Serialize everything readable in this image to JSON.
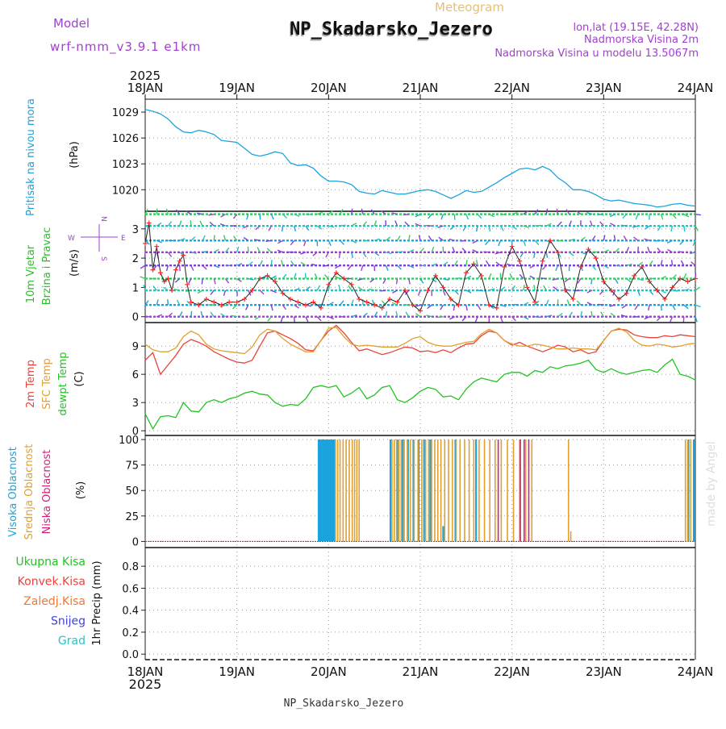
{
  "header": {
    "model_label": "Model",
    "model_name": "wrf-nmm_v3.9.1 e1km",
    "title": "NP_Skadarsko_Jezero",
    "subtitle": "Meteogram",
    "lonlat": "lon,lat (19.15E, 42.28N)",
    "elev": "Nadmorska Visina 2m",
    "model_elev": "Nadmorska Visina u modelu 13.5067m",
    "footer": "NP_Skadarsko_Jezero",
    "watermark": "made by Angel"
  },
  "time_axis": {
    "year": "2025",
    "labels": [
      "18JAN",
      "19JAN",
      "20JAN",
      "21JAN",
      "22JAN",
      "23JAN",
      "24JAN"
    ]
  },
  "colors": {
    "pressure": "#1ba3dd",
    "temp2m": "#e8433a",
    "sfc": "#e0a030",
    "dewpt": "#22c322",
    "high_cloud": "#1ba3dd",
    "mid_cloud": "#e0a030",
    "low_cloud": "#d0207a",
    "wind_label": "#22c322",
    "purple": "#a040d0",
    "wind_speed": "#ff2a2a"
  },
  "panels": {
    "pressure": {
      "ylabel_a": "Pritisak na nivou mora",
      "ylabel_unit": "(hPa)"
    },
    "wind": {
      "ylabel_a": "10m Vjetar",
      "ylabel_b": "Brzina i Pravac",
      "ylabel_unit": "(m/s)",
      "compass_n": "N",
      "compass_s": "S",
      "compass_w": "W",
      "compass_e": "E"
    },
    "temp": {
      "ylabel_a": "2m Temp",
      "ylabel_b": "SFC Temp",
      "ylabel_c": "dewpt Temp",
      "ylabel_unit": "(C)"
    },
    "cloud": {
      "ylabel_a": "Visoka Oblacnost",
      "ylabel_b": "Srednja Oblacnost",
      "ylabel_c": "Niska Oblacnost",
      "ylabel_unit": "(%)"
    },
    "precip": {
      "legend": [
        "Ukupna Kisa",
        "Konvek.Kisa",
        "Zaledj.Kisa",
        "Snijeg",
        "Grad"
      ],
      "legend_colors": [
        "#22c322",
        "#e8433a",
        "#f07830",
        "#4040e0",
        "#30c0c0"
      ],
      "ylabel": "1hr Precip (mm)"
    }
  },
  "chart_data": [
    {
      "type": "line",
      "title": "",
      "x_range": [
        0,
        144
      ],
      "ylabel": "Pritisak na nivou mora (hPa)",
      "ylim": [
        1017.5,
        1030.5
      ],
      "yticks": [
        1020,
        1023,
        1026,
        1029
      ],
      "grid": true,
      "series": [
        {
          "values_x": [
            0,
            2,
            4,
            6,
            8,
            10,
            12,
            14,
            16,
            18,
            20,
            22,
            24,
            26,
            28,
            30,
            32,
            34,
            36,
            38,
            40,
            42,
            44,
            46,
            48,
            50,
            52,
            54,
            56,
            58,
            60,
            62,
            64,
            66,
            68,
            70,
            72,
            74,
            76,
            78,
            80,
            82,
            84,
            86,
            88,
            90,
            92,
            94,
            96,
            98,
            100,
            102,
            104,
            106,
            108,
            110,
            112,
            114,
            116,
            118,
            120,
            122,
            124,
            126,
            128,
            130,
            132,
            134,
            136,
            138,
            140,
            142,
            144
          ],
          "values": [
            1029.3,
            1029.1,
            1028.8,
            1028.2,
            1027.3,
            1026.7,
            1026.6,
            1026.9,
            1026.7,
            1026.4,
            1025.7,
            1025.6,
            1025.5,
            1024.8,
            1024.1,
            1023.9,
            1024.1,
            1024.4,
            1024.2,
            1023.1,
            1022.8,
            1022.9,
            1022.5,
            1021.6,
            1021.0,
            1021.0,
            1020.9,
            1020.6,
            1019.8,
            1019.6,
            1019.5,
            1019.9,
            1019.7,
            1019.5,
            1019.5,
            1019.7,
            1019.9,
            1020.0,
            1019.8,
            1019.4,
            1019.0,
            1019.4,
            1019.9,
            1019.7,
            1019.8,
            1020.3,
            1020.8,
            1021.4,
            1021.9,
            1022.4,
            1022.5,
            1022.3,
            1022.7,
            1022.3,
            1021.4,
            1020.8,
            1020.0,
            1020.0,
            1019.8,
            1019.4,
            1018.9,
            1018.7,
            1018.8,
            1018.6,
            1018.4,
            1018.3,
            1018.2,
            1018.0,
            1018.1,
            1018.3,
            1018.4,
            1018.2,
            1018.1
          ]
        }
      ]
    },
    {
      "type": "line",
      "title": "",
      "x_range": [
        0,
        144
      ],
      "ylabel": "10m Vjetar Brzina i Pravac (m/s)",
      "ylim": [
        -0.2,
        3.6
      ],
      "yticks": [
        0,
        1,
        2,
        3
      ],
      "grid": true,
      "series": [
        {
          "name": "speed",
          "values_x": [
            0,
            1,
            2,
            3,
            4,
            5,
            6,
            7,
            8,
            9,
            10,
            11,
            12,
            14,
            16,
            18,
            20,
            22,
            24,
            26,
            28,
            30,
            32,
            34,
            36,
            38,
            40,
            42,
            44,
            46,
            48,
            50,
            52,
            54,
            56,
            58,
            60,
            62,
            64,
            66,
            68,
            70,
            72,
            74,
            76,
            78,
            80,
            82,
            84,
            86,
            88,
            90,
            92,
            94,
            96,
            98,
            100,
            102,
            104,
            106,
            108,
            110,
            112,
            114,
            116,
            118,
            120,
            122,
            124,
            126,
            128,
            130,
            132,
            134,
            136,
            138,
            140,
            142,
            144
          ],
          "values": [
            2.5,
            3.2,
            1.6,
            2.4,
            1.5,
            1.2,
            1.3,
            0.9,
            1.6,
            1.9,
            2.1,
            1.1,
            0.5,
            0.4,
            0.6,
            0.5,
            0.4,
            0.5,
            0.5,
            0.6,
            0.9,
            1.3,
            1.4,
            1.2,
            0.8,
            0.6,
            0.5,
            0.4,
            0.5,
            0.3,
            1.1,
            1.5,
            1.3,
            1.1,
            0.6,
            0.5,
            0.4,
            0.3,
            0.6,
            0.5,
            0.9,
            0.4,
            0.2,
            0.9,
            1.4,
            1.0,
            0.6,
            0.4,
            1.5,
            1.8,
            1.4,
            0.4,
            0.3,
            1.7,
            2.4,
            1.9,
            1.0,
            0.5,
            1.9,
            2.6,
            2.2,
            0.9,
            0.6,
            1.7,
            2.3,
            2.0,
            1.2,
            0.9,
            0.6,
            0.8,
            1.4,
            1.7,
            1.2,
            0.9,
            0.6,
            1.0,
            1.3,
            1.2,
            1.3
          ]
        },
        {
          "name": "direction_rows",
          "values": [
            0.0,
            0.4,
            0.9,
            1.3,
            1.75,
            2.2,
            2.6,
            3.1,
            3.5
          ]
        }
      ]
    },
    {
      "type": "line",
      "title": "",
      "x_range": [
        0,
        144
      ],
      "ylabel": "(C)",
      "ylim": [
        -0.5,
        11.5
      ],
      "yticks": [
        0,
        3,
        6,
        9
      ],
      "grid": true,
      "series": [
        {
          "name": "2m Temp",
          "values_x": [
            0,
            2,
            4,
            6,
            8,
            10,
            12,
            14,
            16,
            18,
            20,
            22,
            24,
            26,
            28,
            30,
            32,
            34,
            36,
            38,
            40,
            42,
            44,
            46,
            48,
            50,
            52,
            54,
            56,
            58,
            60,
            62,
            64,
            66,
            68,
            70,
            72,
            74,
            76,
            78,
            80,
            82,
            84,
            86,
            88,
            90,
            92,
            94,
            96,
            98,
            100,
            102,
            104,
            106,
            108,
            110,
            112,
            114,
            116,
            118,
            120,
            122,
            124,
            126,
            128,
            130,
            132,
            134,
            136,
            138,
            140,
            142,
            144
          ],
          "values": [
            7.5,
            8.3,
            6.0,
            7.0,
            8.0,
            9.2,
            9.7,
            9.4,
            9.0,
            8.4,
            8.0,
            7.6,
            7.3,
            7.2,
            7.5,
            9.0,
            10.4,
            10.6,
            10.2,
            9.8,
            9.3,
            8.6,
            8.5,
            9.6,
            10.6,
            11.2,
            10.4,
            9.4,
            8.5,
            8.7,
            8.4,
            8.1,
            8.3,
            8.6,
            8.9,
            8.8,
            8.4,
            8.5,
            8.3,
            8.6,
            8.3,
            8.8,
            9.2,
            9.3,
            10.1,
            10.6,
            10.4,
            9.6,
            9.1,
            9.4,
            9.0,
            8.7,
            8.4,
            8.7,
            9.1,
            8.9,
            8.4,
            8.6,
            8.2,
            8.4,
            9.6,
            10.6,
            10.8,
            10.7,
            10.2,
            10.0,
            9.9,
            9.9,
            10.1,
            10.0,
            10.2,
            10.1,
            10.0
          ]
        },
        {
          "name": "SFC Temp",
          "values_x": [
            0,
            2,
            4,
            6,
            8,
            10,
            12,
            14,
            16,
            18,
            20,
            22,
            24,
            26,
            28,
            30,
            32,
            34,
            36,
            38,
            40,
            42,
            44,
            46,
            48,
            50,
            52,
            54,
            56,
            58,
            60,
            62,
            64,
            66,
            68,
            70,
            72,
            74,
            76,
            78,
            80,
            82,
            84,
            86,
            88,
            90,
            92,
            94,
            96,
            98,
            100,
            102,
            104,
            106,
            108,
            110,
            112,
            114,
            116,
            118,
            120,
            122,
            124,
            126,
            128,
            130,
            132,
            134,
            136,
            138,
            140,
            142,
            144
          ],
          "values": [
            9.2,
            8.6,
            8.4,
            8.4,
            8.8,
            10.0,
            10.6,
            10.2,
            9.2,
            8.7,
            8.5,
            8.4,
            8.3,
            8.2,
            8.9,
            10.2,
            10.8,
            10.6,
            9.8,
            9.2,
            8.8,
            8.4,
            8.4,
            9.6,
            10.9,
            11.0,
            10.0,
            9.2,
            9.0,
            9.1,
            9.0,
            8.9,
            8.9,
            8.9,
            9.3,
            9.8,
            10.0,
            9.4,
            9.1,
            9.0,
            9.0,
            9.2,
            9.4,
            9.5,
            10.3,
            10.8,
            10.4,
            9.6,
            9.2,
            9.0,
            9.0,
            9.2,
            9.1,
            8.9,
            8.7,
            8.7,
            8.8,
            8.7,
            8.7,
            8.6,
            9.6,
            10.6,
            10.9,
            10.5,
            9.6,
            9.1,
            9.0,
            9.2,
            9.1,
            8.9,
            9.0,
            9.2,
            9.3
          ]
        },
        {
          "name": "dewpt Temp",
          "values_x": [
            0,
            2,
            4,
            6,
            8,
            10,
            12,
            14,
            16,
            18,
            20,
            22,
            24,
            26,
            28,
            30,
            32,
            34,
            36,
            38,
            40,
            42,
            44,
            46,
            48,
            50,
            52,
            54,
            56,
            58,
            60,
            62,
            64,
            66,
            68,
            70,
            72,
            74,
            76,
            78,
            80,
            82,
            84,
            86,
            88,
            90,
            92,
            94,
            96,
            98,
            100,
            102,
            104,
            106,
            108,
            110,
            112,
            114,
            116,
            118,
            120,
            122,
            124,
            126,
            128,
            130,
            132,
            134,
            136,
            138,
            140,
            142,
            144
          ],
          "values": [
            1.8,
            0.2,
            1.5,
            1.6,
            1.4,
            3.0,
            2.1,
            2.0,
            3.0,
            3.3,
            3.0,
            3.4,
            3.6,
            4.0,
            4.2,
            3.9,
            3.8,
            3.0,
            2.6,
            2.8,
            2.7,
            3.4,
            4.6,
            4.8,
            4.6,
            4.8,
            3.6,
            4.0,
            4.6,
            3.4,
            3.8,
            4.6,
            4.8,
            3.3,
            3.0,
            3.5,
            4.2,
            4.6,
            4.4,
            3.6,
            3.7,
            3.3,
            4.4,
            5.2,
            5.6,
            5.4,
            5.2,
            6.0,
            6.2,
            6.2,
            5.8,
            6.4,
            6.2,
            6.8,
            6.6,
            6.9,
            7.0,
            7.2,
            7.5,
            6.5,
            6.2,
            6.6,
            6.2,
            6.0,
            6.2,
            6.4,
            6.5,
            6.2,
            7.0,
            7.6,
            6.0,
            5.8,
            5.4
          ]
        }
      ]
    },
    {
      "type": "bar",
      "title": "",
      "x_range": [
        0,
        144
      ],
      "ylabel": "(%)",
      "ylim": [
        -6,
        104
      ],
      "yticks": [
        0,
        25,
        50,
        75,
        100
      ],
      "grid": true,
      "series": [
        {
          "name": "Visoka Oblacnost",
          "values_x": [
            45.4,
            45.8,
            46.2,
            46.6,
            47.0,
            47.4,
            47.8,
            48.2,
            48.6,
            49.0,
            49.4,
            64.2,
            66.0,
            67.4,
            68.8,
            70.2,
            71.6,
            73.0,
            74.6,
            78.0,
            81.2,
            86.6,
            142.2,
            143.6
          ],
          "values": [
            100,
            100,
            100,
            100,
            100,
            100,
            100,
            100,
            100,
            100,
            100,
            100,
            100,
            100,
            100,
            100,
            100,
            100,
            100,
            15,
            100,
            100,
            100,
            100
          ]
        },
        {
          "name": "Srednja Oblacnost",
          "values_x": [
            49.8,
            50.4,
            51.0,
            51.8,
            52.6,
            53.4,
            54.2,
            54.8,
            55.4,
            56.0,
            64.6,
            65.2,
            65.8,
            66.4,
            67.0,
            67.8,
            68.6,
            69.4,
            70.4,
            71.4,
            72.4,
            73.4,
            74.2,
            75.0,
            75.8,
            76.6,
            77.4,
            78.4,
            79.4,
            80.4,
            81.4,
            82.4,
            83.6,
            84.8,
            86.0,
            87.4,
            88.8,
            90.2,
            91.6,
            93.2,
            94.8,
            96.4,
            98.0,
            99.6,
            101.2,
            110.8,
            111.4,
            141.4,
            142.0,
            142.8
          ],
          "values": [
            100,
            100,
            100,
            100,
            100,
            100,
            100,
            100,
            100,
            100,
            100,
            100,
            100,
            100,
            100,
            100,
            100,
            100,
            100,
            100,
            100,
            100,
            100,
            100,
            100,
            100,
            100,
            100,
            100,
            100,
            100,
            100,
            100,
            100,
            100,
            100,
            100,
            100,
            100,
            100,
            100,
            100,
            100,
            100,
            100,
            100,
            10,
            100,
            100,
            100
          ]
        },
        {
          "name": "Niska Oblacnost",
          "values_x": [
            92.4,
            98.2,
            99.2,
            100.4
          ],
          "values": [
            100,
            100,
            100,
            100
          ]
        }
      ]
    },
    {
      "type": "bar",
      "title": "",
      "x_range": [
        0,
        144
      ],
      "ylabel": "1hr Precip (mm)",
      "ylim": [
        -0.05,
        0.97
      ],
      "yticks": [
        0.0,
        0.2,
        0.4,
        0.6,
        0.8
      ],
      "grid": true,
      "series": [
        {
          "name": "Ukupna Kisa",
          "values": []
        }
      ]
    }
  ]
}
